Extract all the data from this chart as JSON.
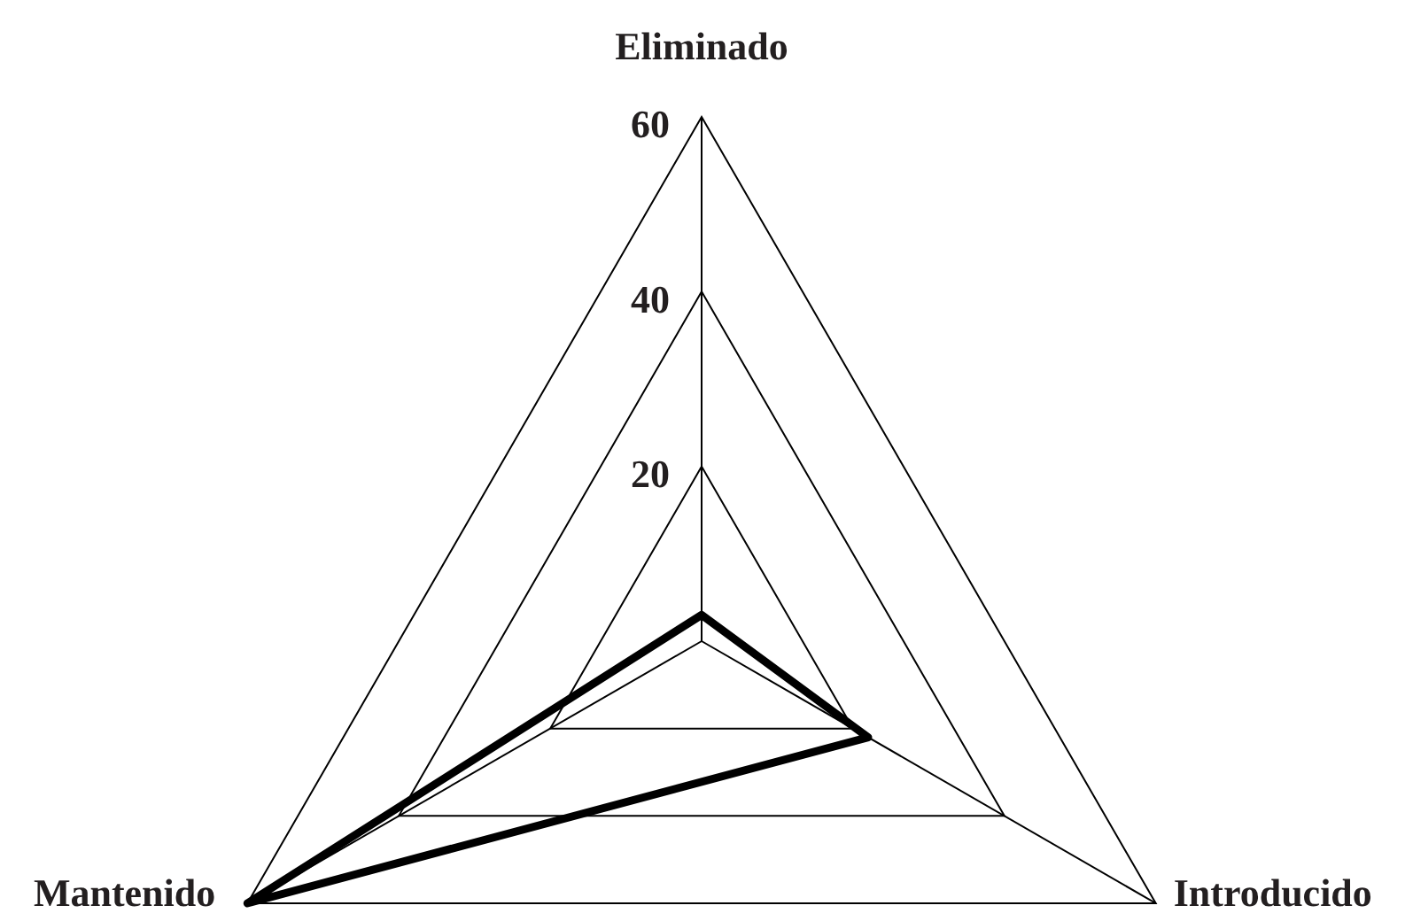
{
  "chart_data": {
    "type": "radar",
    "categories": [
      "Eliminado",
      "Introducido",
      "Mantenido"
    ],
    "series": [
      {
        "color": "#000000",
        "values": [
          3,
          22,
          60
        ]
      }
    ],
    "ylim": [
      0,
      60
    ],
    "yticks": [
      20,
      40,
      60
    ],
    "grid": true,
    "marker": "none"
  }
}
